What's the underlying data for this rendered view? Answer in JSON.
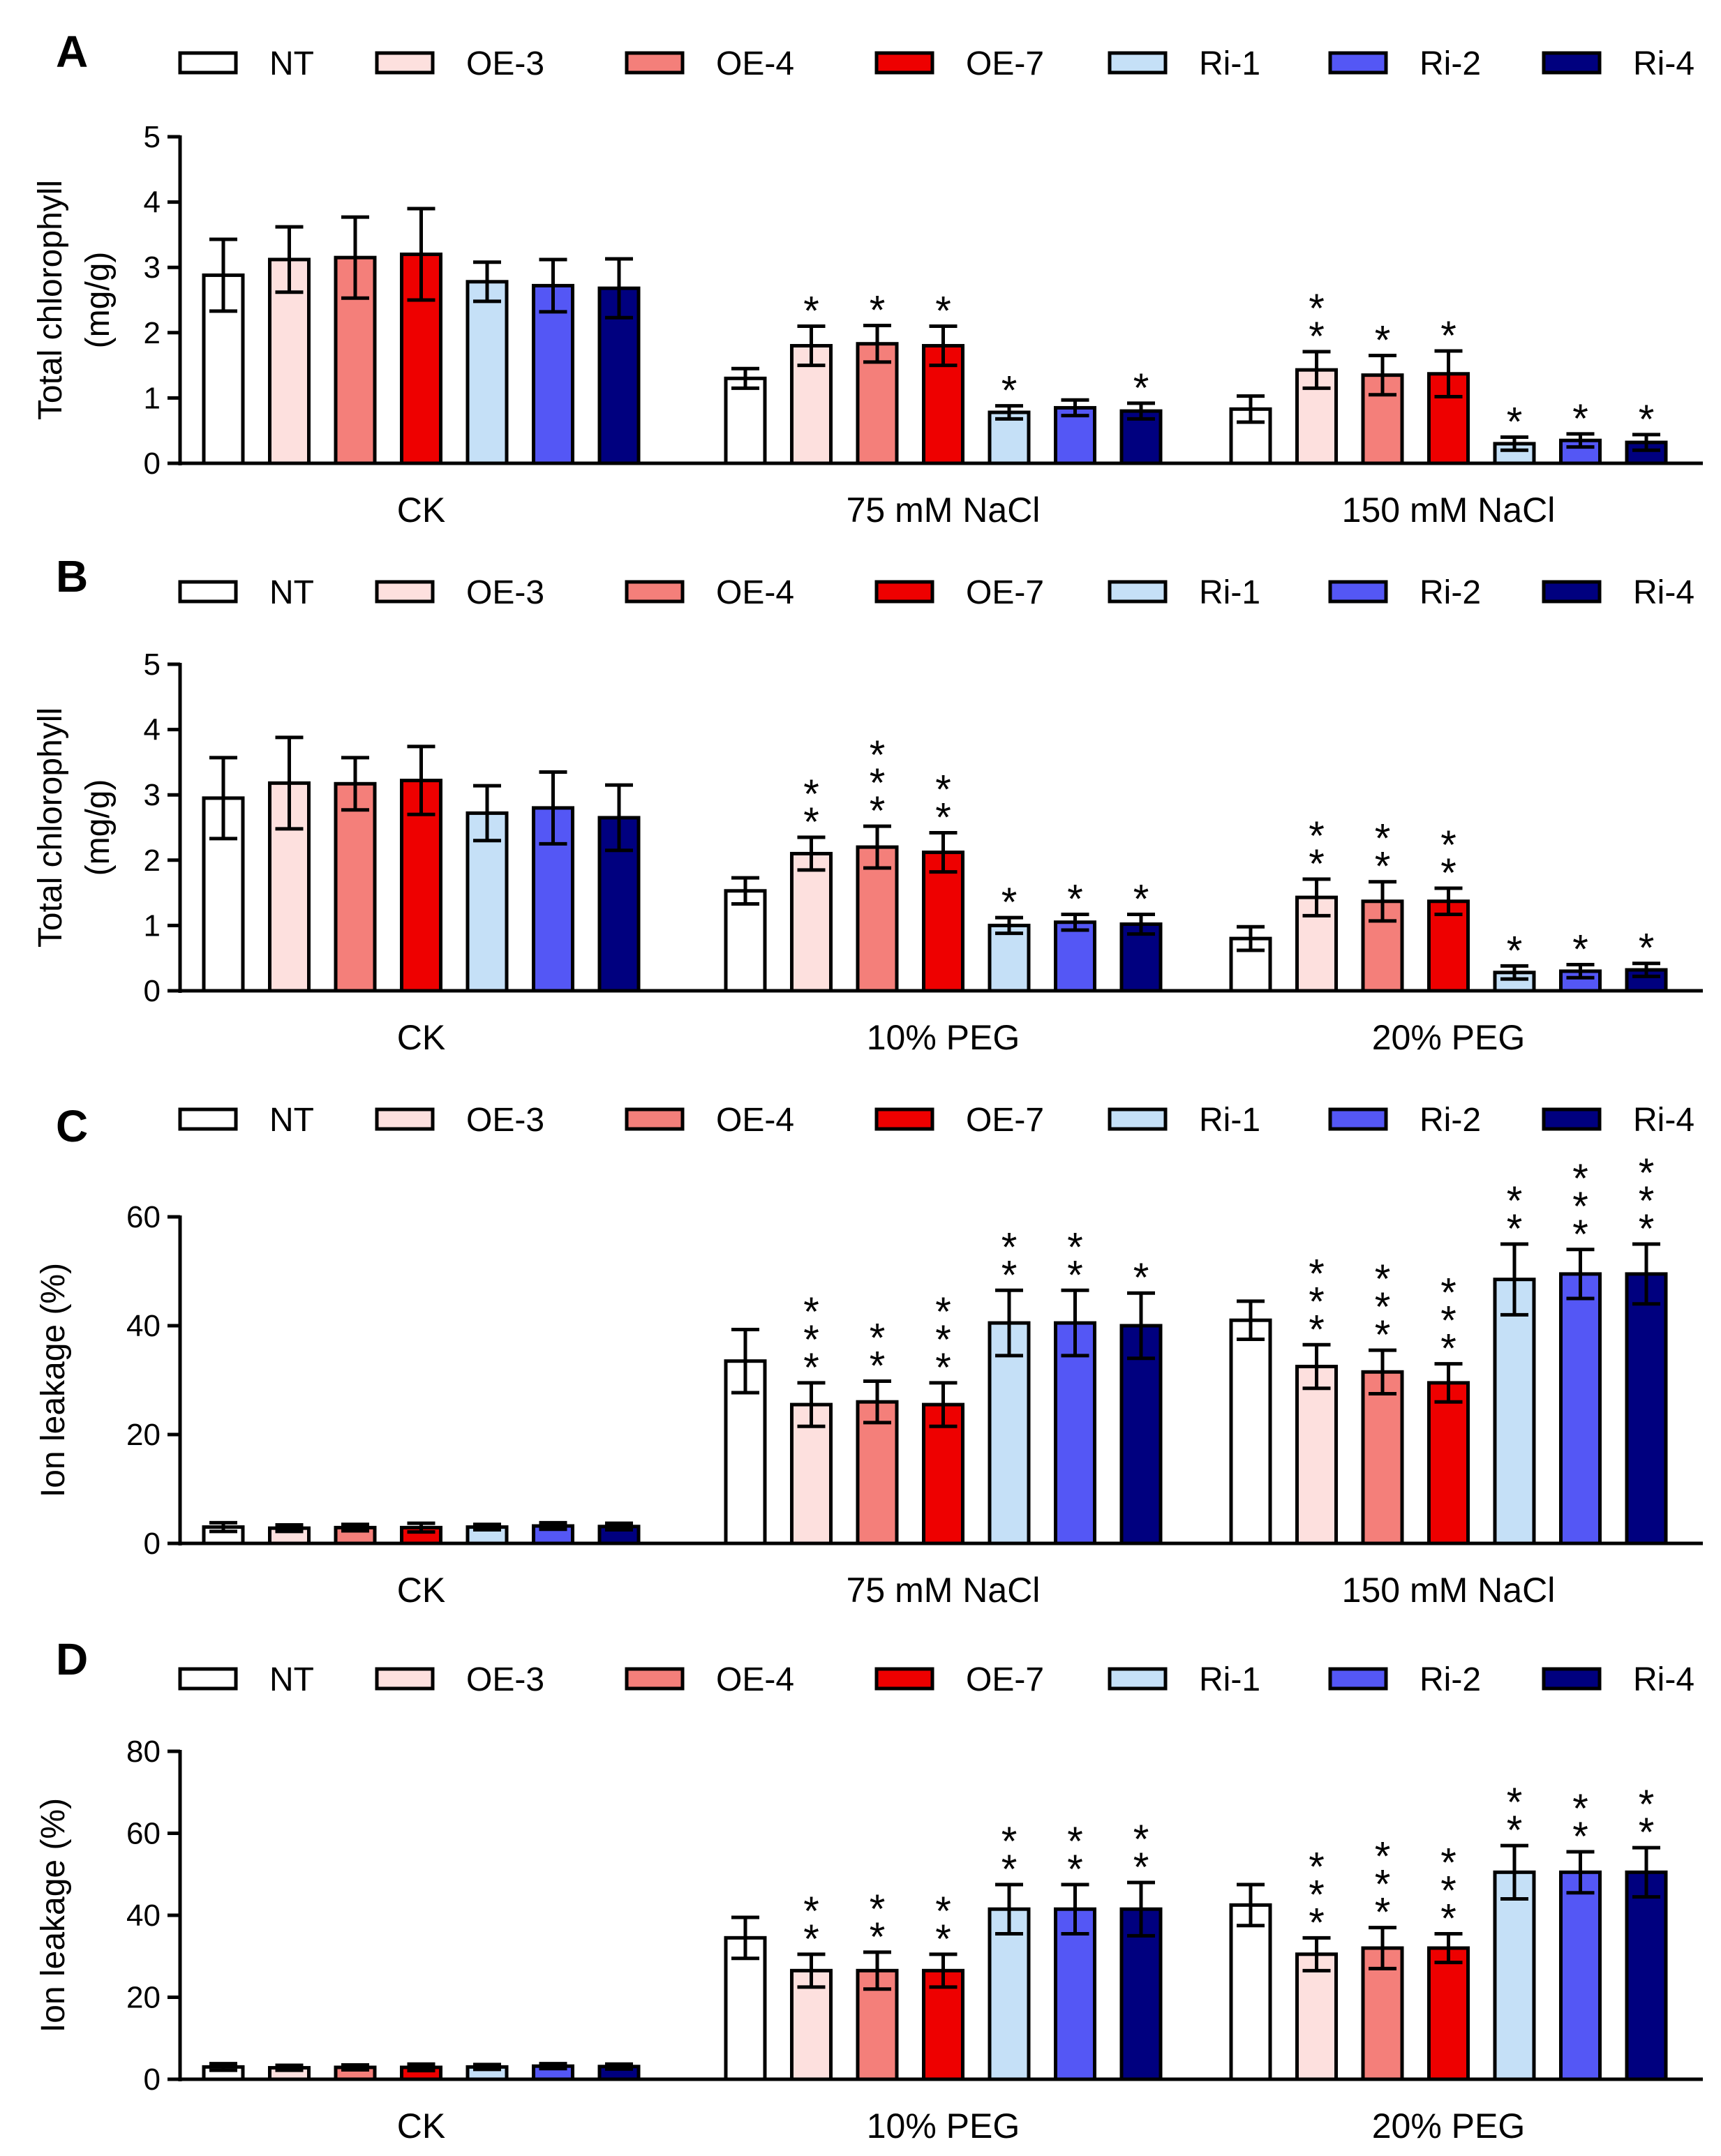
{
  "legend": [
    "NT",
    "OE-3",
    "OE-4",
    "OE-7",
    "Ri-1",
    "Ri-2",
    "Ri-4"
  ],
  "colors": {
    "NT": "#ffffff",
    "OE-3": "#fde0de",
    "OE-4": "#f47f7a",
    "OE-7": "#ee0000",
    "Ri-1": "#c5e0f7",
    "Ri-2": "#5457f5",
    "Ri-4": "#00007f",
    "stroke": "#000000"
  },
  "chart_data": [
    {
      "panel": "A",
      "type": "bar",
      "ylabel": [
        "Total chlorophyll",
        "(mg/g)"
      ],
      "ylim": [
        0,
        5
      ],
      "yticks": [
        "0",
        "1",
        "2",
        "3",
        "4",
        "5"
      ],
      "groups": [
        "CK",
        "75 mM NaCl",
        "150 mM NaCl"
      ],
      "series": [
        {
          "name": "NT",
          "values": [
            2.88,
            1.3,
            0.83
          ],
          "errors": [
            0.55,
            0.15,
            0.2
          ],
          "sig": [
            "",
            "",
            ""
          ]
        },
        {
          "name": "OE-3",
          "values": [
            3.12,
            1.8,
            1.43
          ],
          "errors": [
            0.5,
            0.3,
            0.28
          ],
          "sig": [
            "",
            "*",
            "**"
          ]
        },
        {
          "name": "OE-4",
          "values": [
            3.15,
            1.83,
            1.35
          ],
          "errors": [
            0.62,
            0.28,
            0.3
          ],
          "sig": [
            "",
            "*",
            "*"
          ]
        },
        {
          "name": "OE-7",
          "values": [
            3.2,
            1.8,
            1.37
          ],
          "errors": [
            0.7,
            0.3,
            0.35
          ],
          "sig": [
            "",
            "*",
            "*"
          ]
        },
        {
          "name": "Ri-1",
          "values": [
            2.78,
            0.78,
            0.3
          ],
          "errors": [
            0.3,
            0.1,
            0.1
          ],
          "sig": [
            "",
            "*",
            "*"
          ]
        },
        {
          "name": "Ri-2",
          "values": [
            2.72,
            0.85,
            0.35
          ],
          "errors": [
            0.4,
            0.12,
            0.1
          ],
          "sig": [
            "",
            "",
            "*"
          ]
        },
        {
          "name": "Ri-4",
          "values": [
            2.68,
            0.8,
            0.32
          ],
          "errors": [
            0.45,
            0.12,
            0.12
          ],
          "sig": [
            "",
            "*",
            "*"
          ]
        }
      ]
    },
    {
      "panel": "B",
      "type": "bar",
      "ylabel": [
        "Total chlorophyll",
        "(mg/g)"
      ],
      "ylim": [
        0,
        5
      ],
      "yticks": [
        "0",
        "1",
        "2",
        "3",
        "4",
        "5"
      ],
      "groups": [
        "CK",
        "10% PEG",
        "20% PEG"
      ],
      "series": [
        {
          "name": "NT",
          "values": [
            2.95,
            1.53,
            0.8
          ],
          "errors": [
            0.62,
            0.2,
            0.18
          ],
          "sig": [
            "",
            "",
            ""
          ]
        },
        {
          "name": "OE-3",
          "values": [
            3.18,
            2.1,
            1.43
          ],
          "errors": [
            0.7,
            0.25,
            0.28
          ],
          "sig": [
            "",
            "**",
            "**"
          ]
        },
        {
          "name": "OE-4",
          "values": [
            3.17,
            2.2,
            1.37
          ],
          "errors": [
            0.4,
            0.32,
            0.3
          ],
          "sig": [
            "",
            "***",
            "**"
          ]
        },
        {
          "name": "OE-7",
          "values": [
            3.22,
            2.12,
            1.37
          ],
          "errors": [
            0.52,
            0.3,
            0.2
          ],
          "sig": [
            "",
            "**",
            "**"
          ]
        },
        {
          "name": "Ri-1",
          "values": [
            2.72,
            1.0,
            0.28
          ],
          "errors": [
            0.42,
            0.12,
            0.1
          ],
          "sig": [
            "",
            "*",
            "*"
          ]
        },
        {
          "name": "Ri-2",
          "values": [
            2.8,
            1.05,
            0.3
          ],
          "errors": [
            0.55,
            0.12,
            0.1
          ],
          "sig": [
            "",
            "*",
            "*"
          ]
        },
        {
          "name": "Ri-4",
          "values": [
            2.65,
            1.02,
            0.32
          ],
          "errors": [
            0.5,
            0.15,
            0.1
          ],
          "sig": [
            "",
            "*",
            "*"
          ]
        }
      ]
    },
    {
      "panel": "C",
      "type": "bar",
      "ylabel": [
        "Ion leakage (%)"
      ],
      "ylim": [
        0,
        60
      ],
      "yticks": [
        "0",
        "20",
        "40",
        "60"
      ],
      "groups": [
        "CK",
        "75 mM NaCl",
        "150 mM NaCl"
      ],
      "series": [
        {
          "name": "NT",
          "values": [
            3.0,
            33.5,
            41.0
          ],
          "errors": [
            0.8,
            5.8,
            3.5
          ],
          "sig": [
            "",
            "",
            ""
          ]
        },
        {
          "name": "OE-3",
          "values": [
            2.8,
            25.5,
            32.5
          ],
          "errors": [
            0.6,
            4.0,
            4.0
          ],
          "sig": [
            "",
            "***",
            "***"
          ]
        },
        {
          "name": "OE-4",
          "values": [
            2.9,
            26.0,
            31.5
          ],
          "errors": [
            0.6,
            3.8,
            4.0
          ],
          "sig": [
            "",
            "**",
            "***"
          ]
        },
        {
          "name": "OE-7",
          "values": [
            2.9,
            25.5,
            29.5
          ],
          "errors": [
            0.8,
            4.0,
            3.5
          ],
          "sig": [
            "",
            "***",
            "***"
          ]
        },
        {
          "name": "Ri-1",
          "values": [
            3.0,
            40.5,
            48.5
          ],
          "errors": [
            0.5,
            6.0,
            6.5
          ],
          "sig": [
            "",
            "**",
            "**"
          ]
        },
        {
          "name": "Ri-2",
          "values": [
            3.2,
            40.5,
            49.5
          ],
          "errors": [
            0.6,
            6.0,
            4.5
          ],
          "sig": [
            "",
            "**",
            "***"
          ]
        },
        {
          "name": "Ri-4",
          "values": [
            3.1,
            40.0,
            49.5
          ],
          "errors": [
            0.6,
            6.0,
            5.5
          ],
          "sig": [
            "",
            "*",
            "***"
          ]
        }
      ]
    },
    {
      "panel": "D",
      "type": "bar",
      "ylabel": [
        "Ion leakage (%)"
      ],
      "ylim": [
        0,
        80
      ],
      "yticks": [
        "0",
        "20",
        "40",
        "60",
        "80"
      ],
      "groups": [
        "CK",
        "10% PEG",
        "20% PEG"
      ],
      "series": [
        {
          "name": "NT",
          "values": [
            3.0,
            34.5,
            42.5
          ],
          "errors": [
            0.8,
            5.0,
            5.0
          ],
          "sig": [
            "",
            "",
            ""
          ]
        },
        {
          "name": "OE-3",
          "values": [
            2.8,
            26.5,
            30.5
          ],
          "errors": [
            0.6,
            4.0,
            4.0
          ],
          "sig": [
            "",
            "**",
            "***"
          ]
        },
        {
          "name": "OE-4",
          "values": [
            2.9,
            26.5,
            32.0
          ],
          "errors": [
            0.6,
            4.5,
            5.0
          ],
          "sig": [
            "",
            "**",
            "***"
          ]
        },
        {
          "name": "OE-7",
          "values": [
            2.9,
            26.5,
            32.0
          ],
          "errors": [
            0.8,
            4.0,
            3.5
          ],
          "sig": [
            "",
            "**",
            "***"
          ]
        },
        {
          "name": "Ri-1",
          "values": [
            3.0,
            41.5,
            50.5
          ],
          "errors": [
            0.6,
            6.0,
            6.5
          ],
          "sig": [
            "",
            "**",
            "**"
          ]
        },
        {
          "name": "Ri-2",
          "values": [
            3.2,
            41.5,
            50.5
          ],
          "errors": [
            0.6,
            6.0,
            5.0
          ],
          "sig": [
            "",
            "**",
            "**"
          ]
        },
        {
          "name": "Ri-4",
          "values": [
            3.1,
            41.5,
            50.5
          ],
          "errors": [
            0.6,
            6.5,
            6.0
          ],
          "sig": [
            "",
            "**",
            "**"
          ]
        }
      ]
    }
  ]
}
